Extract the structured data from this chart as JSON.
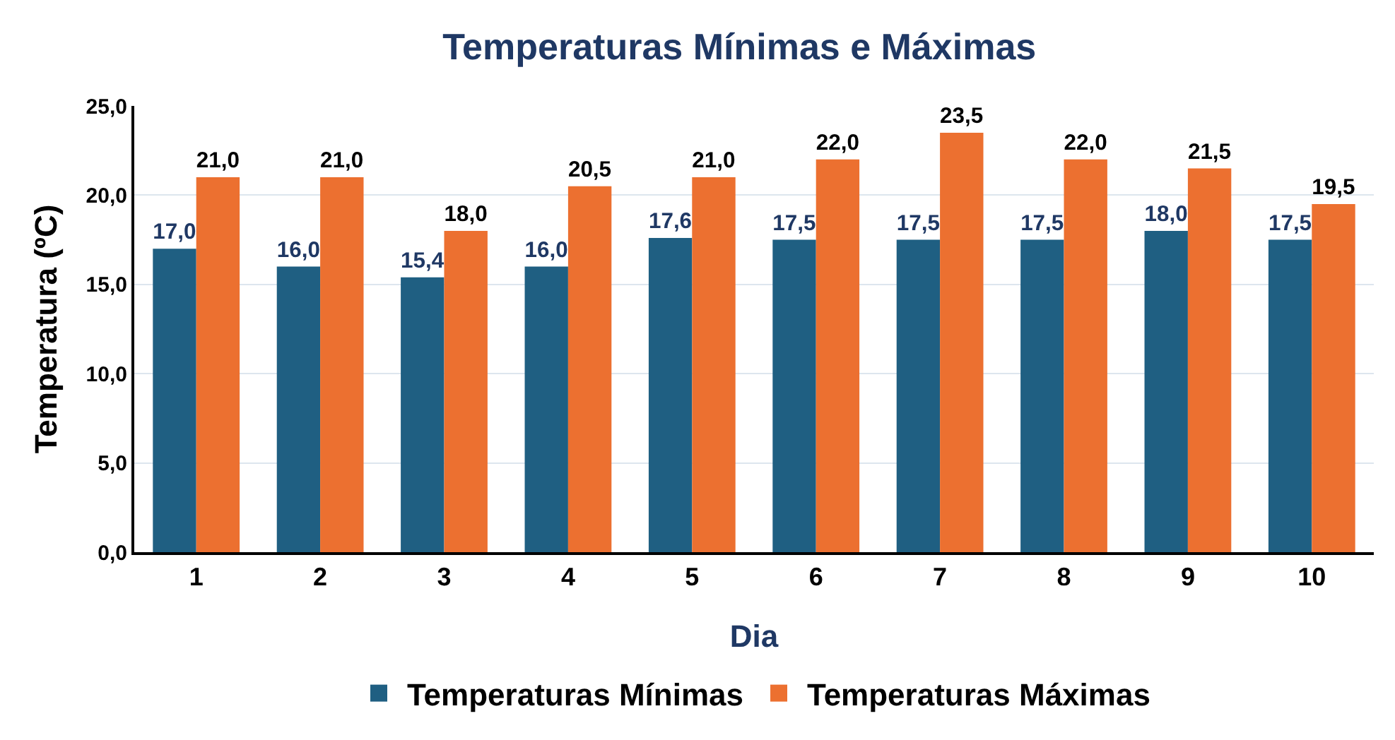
{
  "chart_data": {
    "type": "bar",
    "title": "Temperaturas Mínimas e Máximas",
    "xlabel": "Dia",
    "ylabel": "Temperatura (ºC)",
    "categories": [
      "1",
      "2",
      "3",
      "4",
      "5",
      "6",
      "7",
      "8",
      "9",
      "10"
    ],
    "series": [
      {
        "name": "Temperaturas Mínimas",
        "color": "#1f5f82",
        "values": [
          17.0,
          16.0,
          15.4,
          16.0,
          17.6,
          17.5,
          17.5,
          17.5,
          18.0,
          17.5
        ],
        "value_labels": [
          "17,0",
          "16,0",
          "15,4",
          "16,0",
          "17,6",
          "17,5",
          "17,5",
          "17,5",
          "18,0",
          "17,5"
        ]
      },
      {
        "name": "Temperaturas Máximas",
        "color": "#ec7030",
        "values": [
          21.0,
          21.0,
          18.0,
          20.5,
          21.0,
          22.0,
          23.5,
          22.0,
          21.5,
          19.5
        ],
        "value_labels": [
          "21,0",
          "21,0",
          "18,0",
          "20,5",
          "21,0",
          "22,0",
          "23,5",
          "22,0",
          "21,5",
          "19,5"
        ]
      }
    ],
    "ylim": [
      0,
      25
    ],
    "yticks": [
      {
        "value": 0,
        "label": "0,0"
      },
      {
        "value": 5,
        "label": "5,0"
      },
      {
        "value": 10,
        "label": "10,0"
      },
      {
        "value": 15,
        "label": "15,0"
      },
      {
        "value": 20,
        "label": "20,0"
      },
      {
        "value": 25,
        "label": "25,0"
      }
    ],
    "grid": "y",
    "legend": "bottom"
  }
}
